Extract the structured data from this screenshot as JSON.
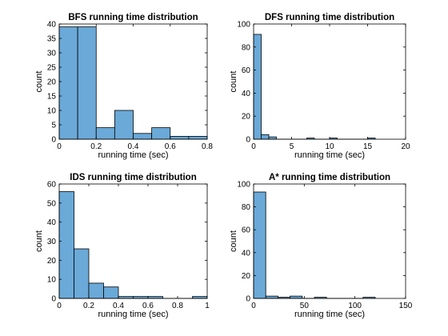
{
  "chart_data": [
    {
      "type": "bar",
      "title": "BFS running time distribution",
      "xlabel": "running time (sec)",
      "ylabel": "count",
      "xlim": [
        0,
        0.8
      ],
      "ylim": [
        0,
        40
      ],
      "xticks": [
        "0",
        "0.2",
        "0.4",
        "0.6",
        "0.8"
      ],
      "yticks": [
        "0",
        "5",
        "10",
        "15",
        "20",
        "25",
        "30",
        "35",
        "40"
      ],
      "bin_edges": [
        0,
        0.1,
        0.2,
        0.3,
        0.4,
        0.5,
        0.6,
        0.7,
        0.8
      ],
      "values": [
        39,
        39,
        4,
        10,
        2,
        4,
        1,
        1
      ],
      "bar_color": "#6aa9d8"
    },
    {
      "type": "bar",
      "title": "DFS running time distribution",
      "xlabel": "running time (sec)",
      "ylabel": "count",
      "xlim": [
        0,
        20
      ],
      "ylim": [
        0,
        100
      ],
      "xticks": [
        "0",
        "5",
        "10",
        "15",
        "20"
      ],
      "yticks": [
        "0",
        "20",
        "40",
        "60",
        "80",
        "100"
      ],
      "bin_edges": [
        0,
        1,
        2,
        3,
        4,
        5,
        6,
        7,
        8,
        9,
        10,
        11,
        12,
        13,
        14,
        15,
        16
      ],
      "values": [
        91,
        4,
        2,
        0,
        0,
        0,
        0,
        1,
        0,
        0,
        1,
        0,
        0,
        0,
        0,
        1
      ],
      "bar_color": "#6aa9d8"
    },
    {
      "type": "bar",
      "title": "IDS running time distribution",
      "xlabel": "running time (sec)",
      "ylabel": "count",
      "xlim": [
        0,
        1
      ],
      "ylim": [
        0,
        60
      ],
      "xticks": [
        "0",
        "0.2",
        "0.4",
        "0.6",
        "0.8",
        "1"
      ],
      "yticks": [
        "0",
        "10",
        "20",
        "30",
        "40",
        "50",
        "60"
      ],
      "bin_edges": [
        0,
        0.1,
        0.2,
        0.3,
        0.4,
        0.5,
        0.6,
        0.7,
        0.8,
        0.9,
        1.0
      ],
      "values": [
        56,
        26,
        8,
        6,
        1,
        1,
        1,
        0,
        0,
        1
      ],
      "bar_color": "#6aa9d8"
    },
    {
      "type": "bar",
      "title": "A* running time distribution",
      "xlabel": "running time (sec)",
      "ylabel": "count",
      "xlim": [
        0,
        150
      ],
      "ylim": [
        0,
        100
      ],
      "xticks": [
        "0",
        "50",
        "100",
        "150"
      ],
      "yticks": [
        "0",
        "20",
        "40",
        "60",
        "80",
        "100"
      ],
      "bin_edges": [
        0,
        12,
        24,
        36,
        48,
        60,
        72,
        84,
        96,
        108,
        120
      ],
      "values": [
        93,
        2,
        1,
        2,
        0,
        1,
        0,
        0,
        0,
        1
      ],
      "bar_color": "#6aa9d8"
    }
  ]
}
